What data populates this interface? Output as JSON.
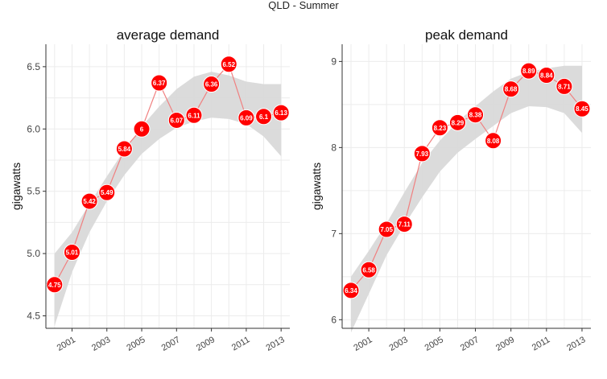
{
  "figure_title": "QLD - Summer",
  "colors": {
    "point": "#ff0000",
    "line": "#f08080",
    "band": "#d9d9d9",
    "grid": "#ececec",
    "axis": "#333333"
  },
  "chart_data": [
    {
      "type": "line",
      "title": "average demand",
      "xlabel": "",
      "ylabel": "gigawatts",
      "xlim": [
        1999.5,
        2013.5
      ],
      "ylim": [
        4.4,
        6.68
      ],
      "xticks": [
        2001,
        2003,
        2005,
        2007,
        2009,
        2011,
        2013
      ],
      "yticks": [
        4.5,
        5.0,
        5.5,
        6.0,
        6.5
      ],
      "ytick_labels": [
        "4.5",
        "5.0",
        "5.5",
        "6.0",
        "6.5"
      ],
      "grid": true,
      "smoothing_band": true,
      "x": [
        2000,
        2001,
        2002,
        2003,
        2004,
        2005,
        2006,
        2007,
        2008,
        2009,
        2010,
        2011,
        2012,
        2013
      ],
      "y": [
        4.75,
        5.01,
        5.42,
        5.49,
        5.84,
        6,
        6.37,
        6.07,
        6.11,
        6.36,
        6.52,
        6.09,
        6.1,
        6.13
      ],
      "labels": [
        "4.75",
        "5.01",
        "5.42",
        "5.49",
        "5.84",
        "6",
        "6.37",
        "6.07",
        "6.11",
        "6.36",
        "6.52",
        "6.09",
        "6.1",
        "6.13"
      ],
      "band_x": [
        2000,
        2001,
        2002,
        2003,
        2004,
        2005,
        2006,
        2007,
        2008,
        2009,
        2010,
        2011,
        2012,
        2013
      ],
      "band_lower": [
        4.42,
        4.85,
        5.17,
        5.42,
        5.63,
        5.8,
        5.92,
        6.01,
        6.06,
        6.09,
        6.08,
        6.04,
        5.94,
        5.78
      ],
      "band_upper": [
        5.0,
        5.17,
        5.4,
        5.62,
        5.83,
        6.02,
        6.18,
        6.32,
        6.42,
        6.46,
        6.43,
        6.38,
        6.36,
        6.36
      ]
    },
    {
      "type": "line",
      "title": "peak demand",
      "xlabel": "",
      "ylabel": "gigawatts",
      "xlim": [
        1999.5,
        2013.5
      ],
      "ylim": [
        5.9,
        9.2
      ],
      "xticks": [
        2001,
        2003,
        2005,
        2007,
        2009,
        2011,
        2013
      ],
      "yticks": [
        6,
        7,
        8,
        9
      ],
      "ytick_labels": [
        "6",
        "7",
        "8",
        "9"
      ],
      "grid": true,
      "smoothing_band": true,
      "x": [
        2000,
        2001,
        2002,
        2003,
        2004,
        2005,
        2006,
        2007,
        2008,
        2009,
        2010,
        2011,
        2012,
        2013
      ],
      "y": [
        6.34,
        6.58,
        7.05,
        7.11,
        7.93,
        8.23,
        8.29,
        8.38,
        8.08,
        8.68,
        8.89,
        8.84,
        8.71,
        8.45
      ],
      "labels": [
        "6.34",
        "6.58",
        "7.05",
        "7.11",
        "7.93",
        "8.23",
        "8.29",
        "8.38",
        "8.08",
        "8.68",
        "8.89",
        "8.84",
        "8.71",
        "8.45"
      ],
      "band_x": [
        2000,
        2001,
        2002,
        2003,
        2004,
        2005,
        2006,
        2007,
        2008,
        2009,
        2010,
        2011,
        2012,
        2013
      ],
      "band_lower": [
        5.85,
        6.3,
        6.75,
        7.1,
        7.42,
        7.72,
        7.94,
        8.1,
        8.25,
        8.4,
        8.48,
        8.47,
        8.4,
        8.17
      ],
      "band_upper": [
        6.5,
        6.8,
        7.12,
        7.48,
        7.82,
        8.08,
        8.3,
        8.48,
        8.65,
        8.8,
        8.88,
        8.92,
        8.95,
        8.95
      ]
    }
  ]
}
